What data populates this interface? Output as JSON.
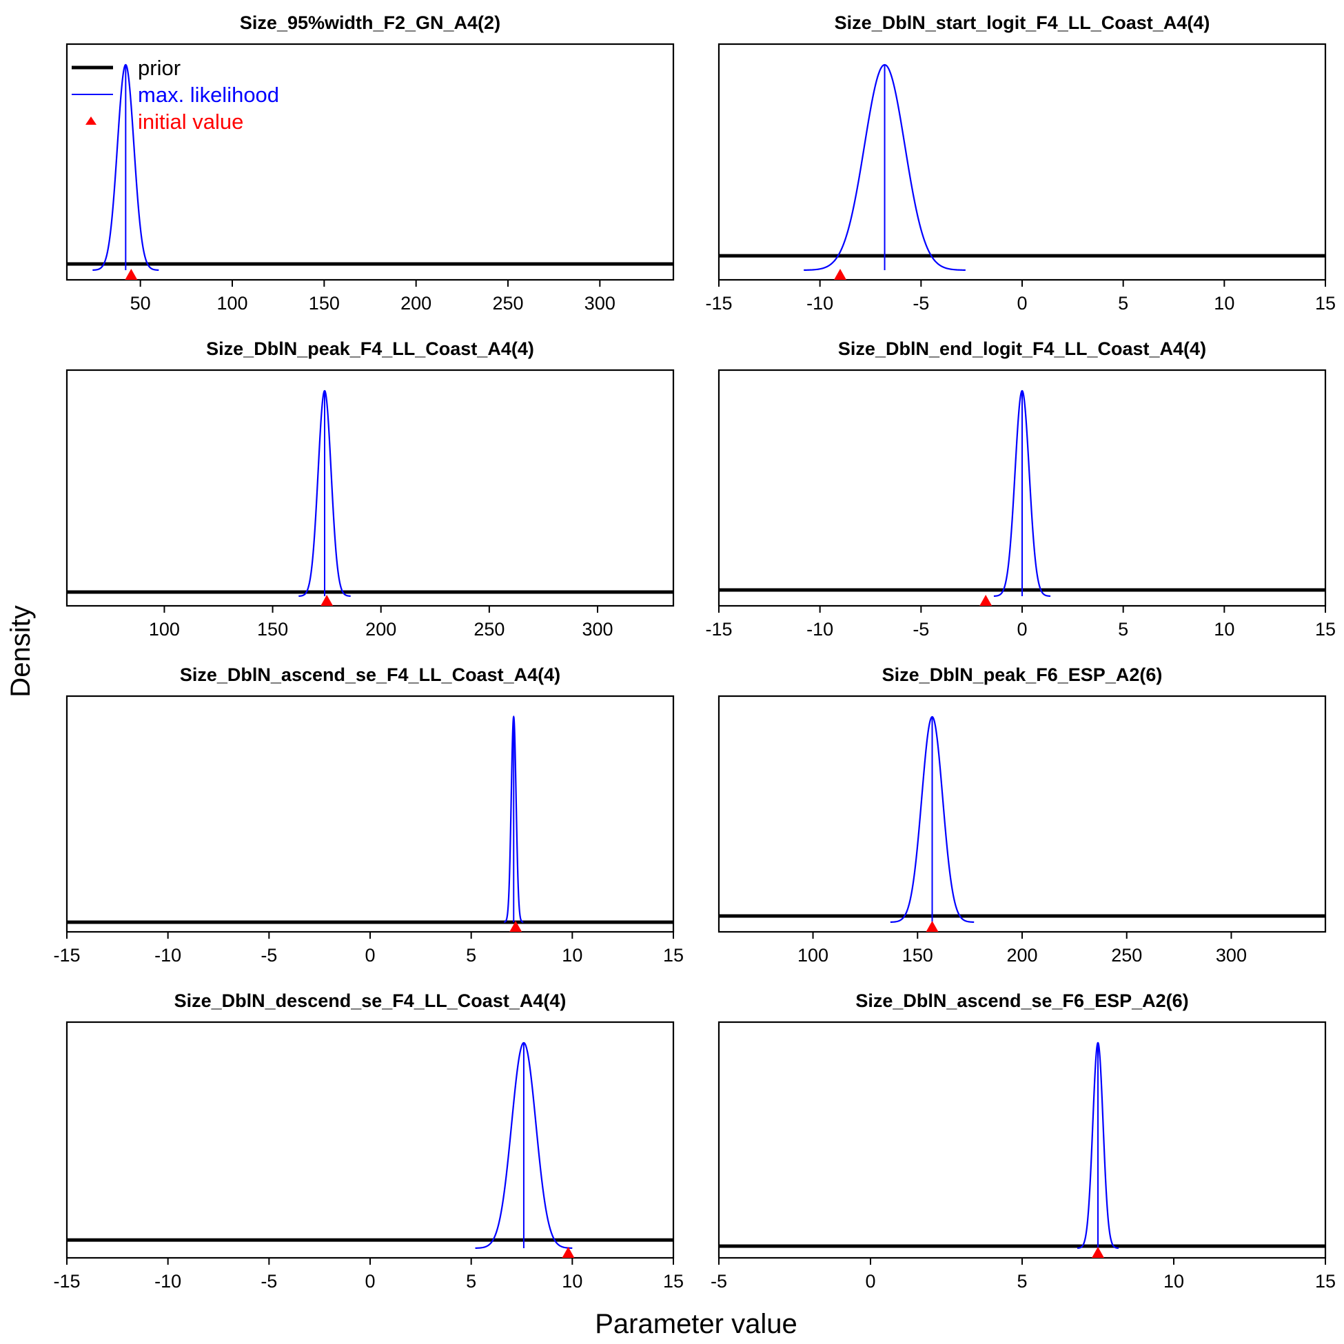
{
  "figure": {
    "ylabel": "Density",
    "xlabel": "Parameter value"
  },
  "legend": {
    "items": [
      {
        "label": "prior",
        "color": "#000000",
        "style": "thick-line"
      },
      {
        "label": "max. likelihood",
        "color": "#0000ff",
        "style": "thin-line"
      },
      {
        "label": "initial value",
        "color": "#ff0000",
        "style": "triangle"
      }
    ]
  },
  "chart_data": [
    {
      "type": "line",
      "title": "Size_95%width_F2_GN_A4(2)",
      "xlim": [
        10,
        340
      ],
      "xticks": [
        50,
        100,
        150,
        200,
        250,
        300
      ],
      "mle": 42,
      "sd": 4.5,
      "prior_level": 0.03,
      "initial_value": 45
    },
    {
      "type": "line",
      "title": "Size_DblN_start_logit_F4_LL_Coast_A4(4)",
      "xlim": [
        -15,
        15
      ],
      "xticks": [
        -15,
        -10,
        -5,
        0,
        5,
        10,
        15
      ],
      "mle": -6.8,
      "sd": 1.0,
      "prior_level": 0.07,
      "initial_value": -9
    },
    {
      "type": "line",
      "title": "Size_DblN_peak_F4_LL_Coast_A4(4)",
      "xlim": [
        55,
        335
      ],
      "xticks": [
        100,
        150,
        200,
        250,
        300
      ],
      "mle": 174,
      "sd": 3.0,
      "prior_level": 0.02,
      "initial_value": 175
    },
    {
      "type": "line",
      "title": "Size_DblN_end_logit_F4_LL_Coast_A4(4)",
      "xlim": [
        -15,
        15
      ],
      "xticks": [
        -15,
        -10,
        -5,
        0,
        5,
        10,
        15
      ],
      "mle": 0.0,
      "sd": 0.35,
      "prior_level": 0.03,
      "initial_value": -1.8
    },
    {
      "type": "line",
      "title": "Size_DblN_ascend_se_F4_LL_Coast_A4(4)",
      "xlim": [
        -15,
        15
      ],
      "xticks": [
        -15,
        -10,
        -5,
        0,
        5,
        10,
        15
      ],
      "mle": 7.1,
      "sd": 0.12,
      "prior_level": 0.0,
      "initial_value": 7.2
    },
    {
      "type": "line",
      "title": "Size_DblN_peak_F6_ESP_A2(6)",
      "xlim": [
        55,
        345
      ],
      "xticks": [
        100,
        150,
        200,
        250,
        300
      ],
      "mle": 157,
      "sd": 5.0,
      "prior_level": 0.03,
      "initial_value": 157
    },
    {
      "type": "line",
      "title": "Size_DblN_descend_se_F4_LL_Coast_A4(4)",
      "xlim": [
        -15,
        15
      ],
      "xticks": [
        -15,
        -10,
        -5,
        0,
        5,
        10,
        15
      ],
      "mle": 7.6,
      "sd": 0.6,
      "prior_level": 0.04,
      "initial_value": 9.8
    },
    {
      "type": "line",
      "title": "Size_DblN_ascend_se_F6_ESP_A2(6)",
      "xlim": [
        -5,
        15
      ],
      "xticks": [
        -5,
        0,
        5,
        10,
        15
      ],
      "mle": 7.5,
      "sd": 0.17,
      "prior_level": 0.01,
      "initial_value": 7.5
    }
  ]
}
